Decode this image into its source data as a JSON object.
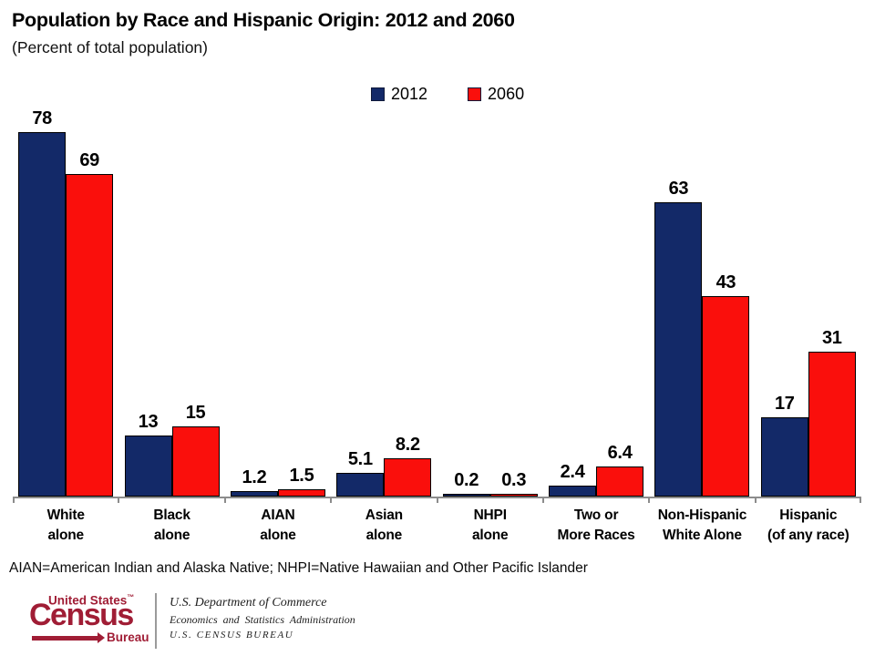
{
  "chart_data": {
    "type": "bar",
    "title": "Population by Race and Hispanic Origin: 2012 and 2060",
    "subtitle": "(Percent of total population)",
    "categories": [
      "White alone",
      "Black alone",
      "AIAN alone",
      "Asian alone",
      "NHPI alone",
      "Two or More Races",
      "Non-Hispanic White Alone",
      "Hispanic (of any race)"
    ],
    "category_lines": [
      [
        "White",
        "alone"
      ],
      [
        "Black",
        "alone"
      ],
      [
        "AIAN",
        "alone"
      ],
      [
        "Asian",
        "alone"
      ],
      [
        "NHPI",
        "alone"
      ],
      [
        "Two or",
        "More Races"
      ],
      [
        "Non-Hispanic",
        "White Alone"
      ],
      [
        "Hispanic",
        "(of any race)"
      ]
    ],
    "series": [
      {
        "name": "2012",
        "color": "#132968",
        "values": [
          78,
          13,
          1.2,
          5.1,
          0.2,
          2.4,
          63,
          17
        ]
      },
      {
        "name": "2060",
        "color": "#fa0f0c",
        "values": [
          69,
          15,
          1.5,
          8.2,
          0.3,
          6.4,
          43,
          31
        ]
      }
    ],
    "xlabel": "",
    "ylabel": "",
    "ylim": [
      0,
      80
    ],
    "grid": false,
    "legend_position": "top-center",
    "value_labels": true,
    "bar_border_color": "#000000",
    "axis_color": "#8c8c8c"
  },
  "footnote": "AIAN=American Indian and Alaska Native; NHPI=Native Hawaiian and Other Pacific Islander",
  "footer": {
    "logo": {
      "line_top": "United States",
      "trademark": "™",
      "line_main": "Census",
      "line_bottom": "Bureau",
      "color": "#a01d35"
    },
    "agency_lines": [
      "U.S. Department of Commerce",
      "Economics and Statistics Administration",
      "U.S. CENSUS BUREAU"
    ]
  }
}
